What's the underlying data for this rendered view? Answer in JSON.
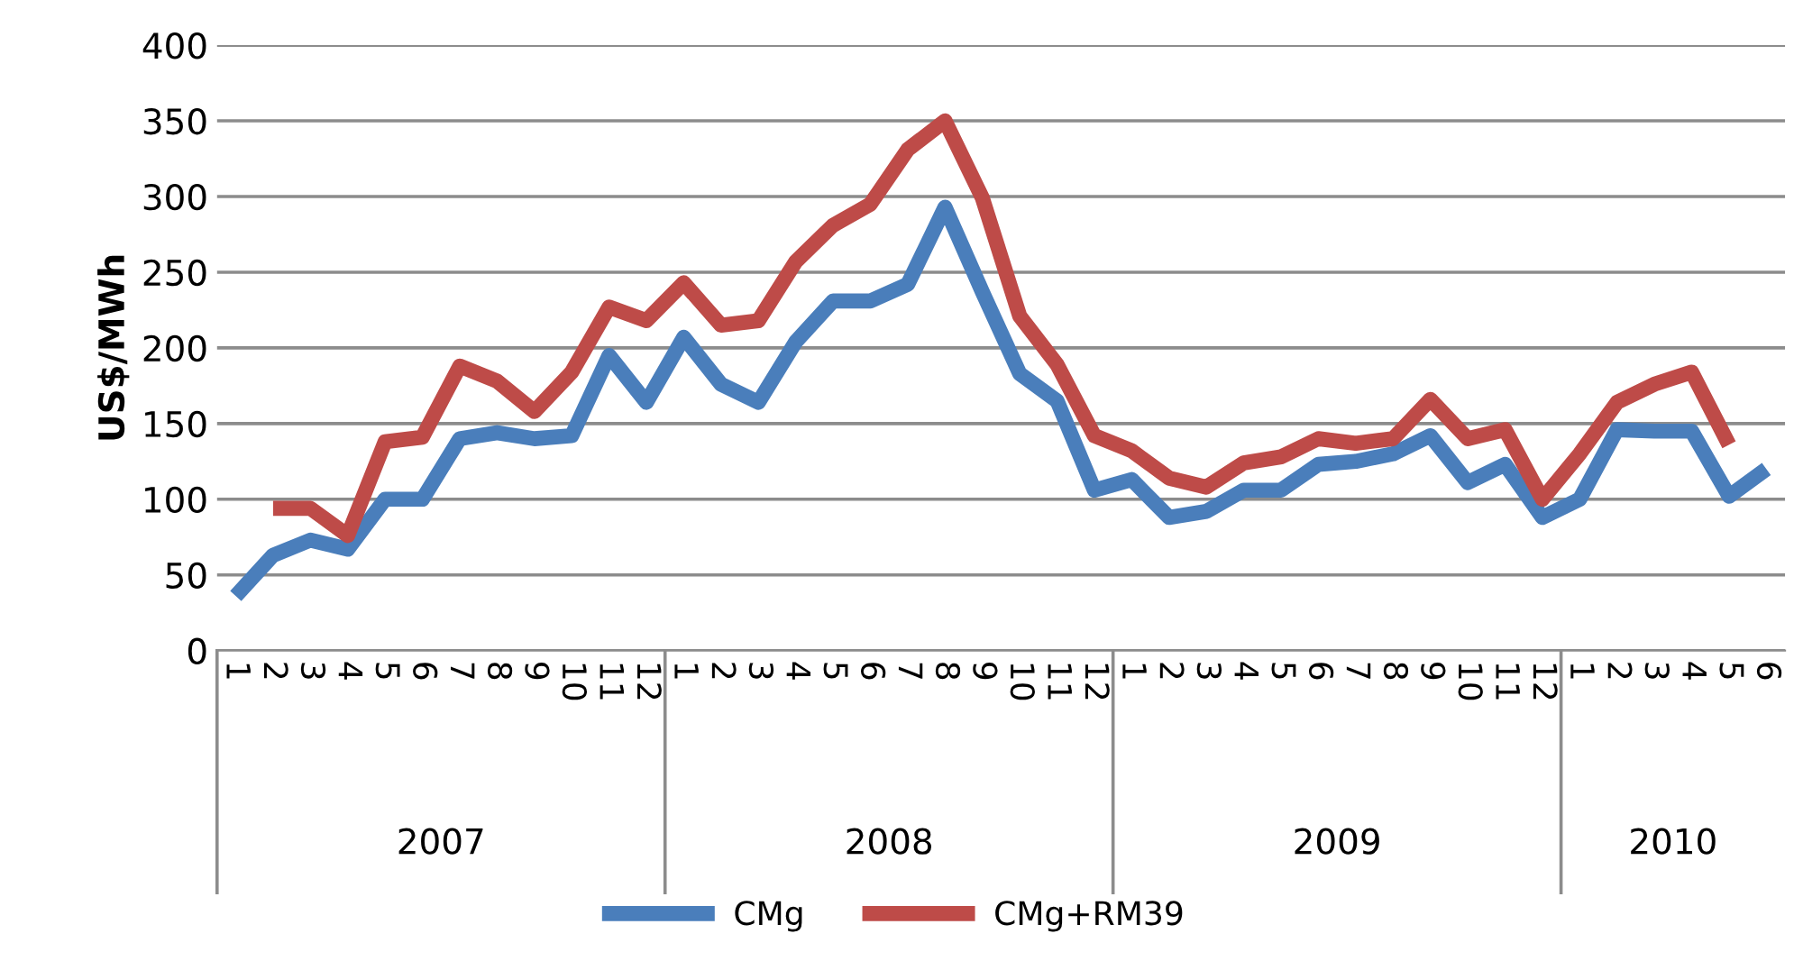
{
  "chart_data": {
    "type": "line",
    "ylabel": "US$/MWh",
    "categories": [
      "1",
      "2",
      "3",
      "4",
      "5",
      "6",
      "7",
      "8",
      "9",
      "10",
      "11",
      "12",
      "1",
      "2",
      "3",
      "4",
      "5",
      "6",
      "7",
      "8",
      "9",
      "10",
      "11",
      "12",
      "1",
      "2",
      "3",
      "4",
      "5",
      "6",
      "7",
      "8",
      "9",
      "10",
      "11",
      "12",
      "1",
      "2",
      "3",
      "4",
      "5",
      "6"
    ],
    "annotations": [
      "2007",
      "2008",
      "2009",
      "2010"
    ],
    "series": [
      {
        "name": "CMg",
        "color": "#4a7ebb",
        "values": [
          36,
          63,
          73,
          67,
          100,
          100,
          140,
          144,
          140,
          142,
          195,
          164,
          207,
          176,
          164,
          204,
          231,
          231,
          242,
          293,
          237,
          183,
          165,
          106,
          113,
          88,
          92,
          106,
          106,
          123,
          125,
          130,
          142,
          111,
          123,
          88,
          100,
          146,
          145,
          145,
          102,
          120
        ]
      },
      {
        "name": "CMg+RM39",
        "color": "#be4b48",
        "values": [
          null,
          94,
          94,
          76,
          138,
          141,
          188,
          178,
          158,
          184,
          227,
          218,
          243,
          215,
          218,
          257,
          281,
          295,
          331,
          350,
          299,
          221,
          189,
          142,
          132,
          114,
          108,
          124,
          128,
          140,
          137,
          140,
          166,
          140,
          146,
          100,
          130,
          164,
          176,
          184,
          136,
          null
        ]
      }
    ],
    "ylim": [
      0,
      400
    ],
    "yticks": [
      0,
      50,
      100,
      150,
      200,
      250,
      300,
      350,
      400
    ],
    "grid": "y",
    "legend": "bottom",
    "marker": "none",
    "line_style": "solid"
  }
}
